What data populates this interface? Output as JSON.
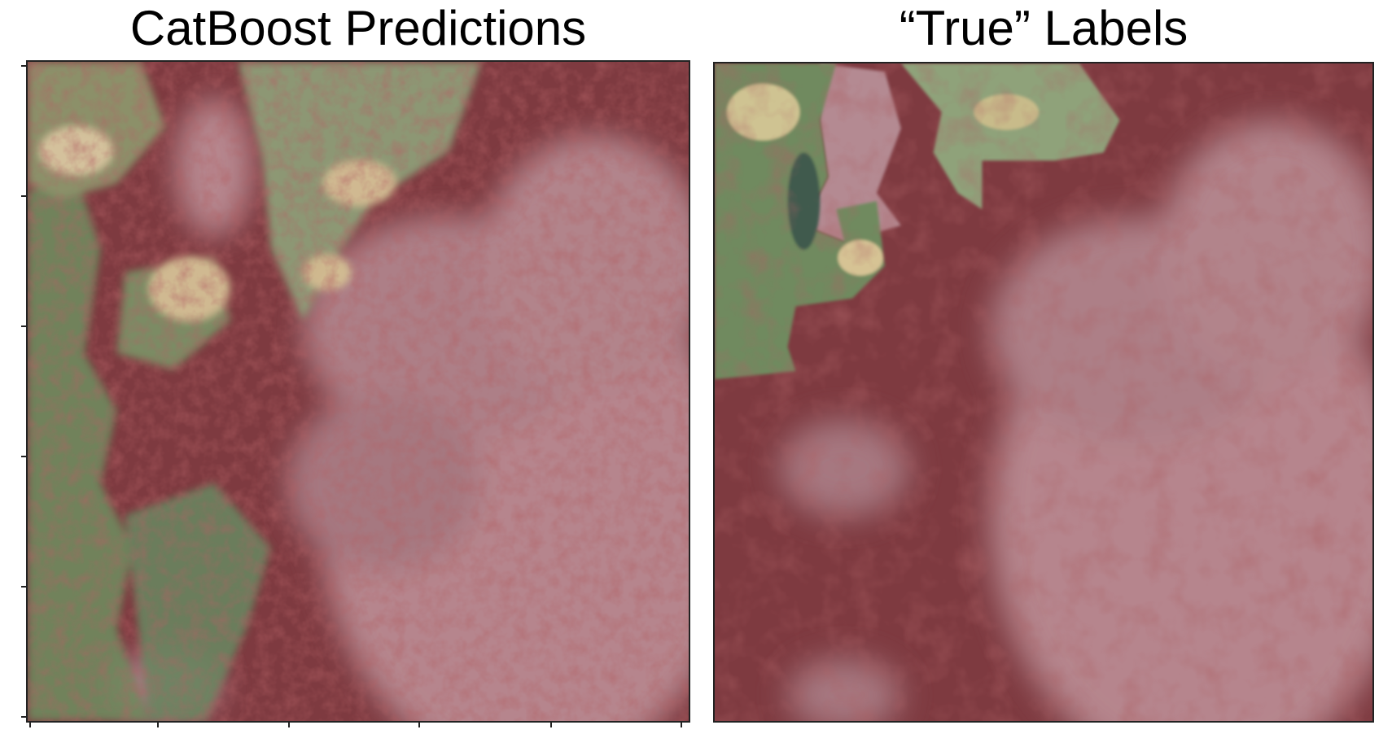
{
  "panels": [
    {
      "title": "CatBoost Predictions",
      "image": "satellite imagery with dark-red prediction overlay; green vegetation on left, pink cloud cover on right"
    },
    {
      "title": "“True” Labels",
      "image": "satellite imagery with smooth dark-red label overlay; green vegetation top-left, pink cloud cover elsewhere"
    }
  ],
  "colors": {
    "overlay": "#8b3a3f",
    "cloud": "#b98a92",
    "vegetation": "#6f8a5e",
    "bright_land": "#d9c79a",
    "frame": "#222222"
  }
}
